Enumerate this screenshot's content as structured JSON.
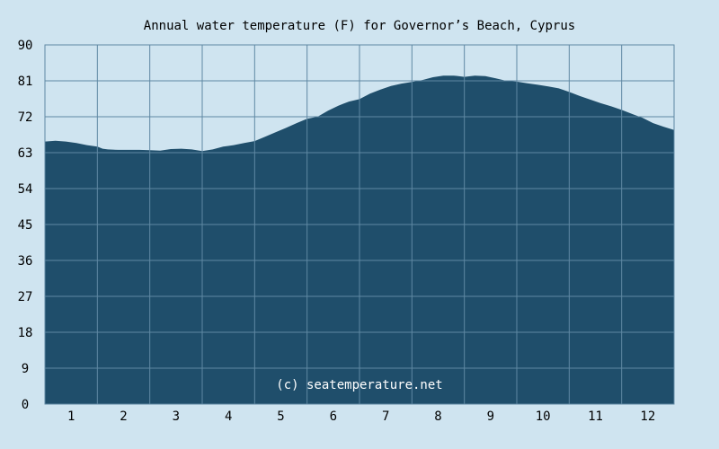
{
  "chart_data": {
    "type": "area",
    "title": "Annual water temperature (F) for Governor’s Beach, Cyprus",
    "watermark": "(c) seatemperature.net",
    "categories": [
      "1",
      "2",
      "3",
      "4",
      "5",
      "6",
      "7",
      "8",
      "9",
      "10",
      "11",
      "12"
    ],
    "y_ticks": [
      "0",
      "9",
      "18",
      "27",
      "36",
      "45",
      "54",
      "63",
      "72",
      "81",
      "90"
    ],
    "ylim": [
      0,
      90
    ],
    "xlim": [
      0.5,
      12.5
    ],
    "grid": true,
    "series": [
      {
        "x": [
          0.5,
          0.7,
          0.9,
          1.1,
          1.3,
          1.5,
          1.6,
          1.7,
          1.9,
          2.1,
          2.3,
          2.5,
          2.7,
          2.9,
          3.1,
          3.3,
          3.5,
          3.7,
          3.9,
          4.1,
          4.3,
          4.5,
          4.7,
          4.9,
          5.1,
          5.3,
          5.5,
          5.7,
          5.9,
          6.1,
          6.3,
          6.5,
          6.7,
          6.9,
          7.1,
          7.3,
          7.5,
          7.7,
          7.9,
          8.0,
          8.1,
          8.3,
          8.5,
          8.7,
          8.9,
          9.1,
          9.3,
          9.5,
          9.7,
          9.9,
          10.1,
          10.3,
          10.5,
          10.7,
          10.9,
          11.1,
          11.3,
          11.5,
          11.7,
          11.9,
          12.1,
          12.3,
          12.5
        ],
        "values": [
          65.8,
          66.0,
          65.8,
          65.4,
          64.9,
          64.5,
          64.0,
          63.8,
          63.7,
          63.7,
          63.7,
          63.6,
          63.5,
          63.9,
          64.0,
          63.8,
          63.4,
          63.8,
          64.5,
          64.9,
          65.4,
          65.9,
          67.0,
          68.1,
          69.2,
          70.4,
          71.5,
          72.0,
          73.5,
          74.8,
          75.8,
          76.4,
          77.8,
          78.8,
          79.7,
          80.3,
          80.7,
          81.2,
          81.9,
          82.1,
          82.3,
          82.3,
          82.0,
          82.3,
          82.2,
          81.6,
          81.0,
          80.8,
          80.4,
          80.0,
          79.6,
          79.1,
          78.2,
          77.2,
          76.3,
          75.4,
          74.6,
          73.7,
          72.7,
          71.7,
          70.4,
          69.5,
          68.7
        ]
      }
    ],
    "colors": {
      "background": "#cfe4f0",
      "fill": "#1f4e6b",
      "grid": "#5f88a3",
      "text": "#000000",
      "watermark": "#ffffff"
    }
  }
}
